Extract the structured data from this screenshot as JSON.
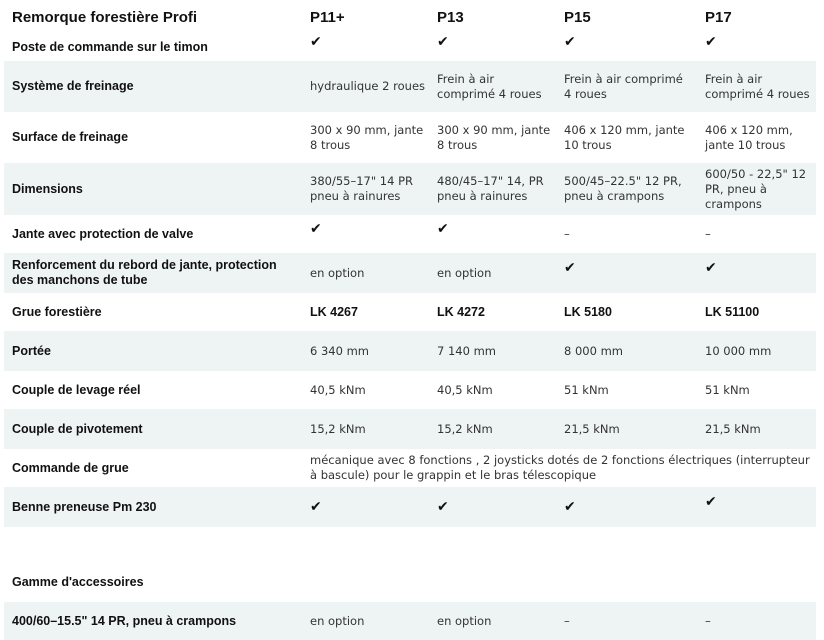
{
  "header": {
    "title": "Remorque forestière Profi",
    "models": [
      "P11+",
      "P13",
      "P15",
      "P17"
    ]
  },
  "rows": [
    {
      "label": "Poste de commande sur le timon",
      "cells": [
        "✔",
        "✔",
        "✔",
        "✔"
      ]
    },
    {
      "label": "Système de freinage",
      "cells": [
        "hydraulique 2 roues",
        "Frein à air comprimé 4 roues",
        "Frein à air comprimé 4 roues",
        "Frein à air comprimé 4 roues"
      ]
    },
    {
      "label": "Surface de freinage",
      "cells": [
        "300 x 90 mm, jante 8 trous",
        "300 x 90 mm, jante 8 trous",
        "406 x 120 mm, jante 10 trous",
        "406 x 120 mm, jante 10 trous"
      ]
    },
    {
      "label": "Dimensions",
      "cells": [
        "380/55–17\" 14 PR pneu à rainures",
        "480/45–17\" 14, PR pneu à rainures",
        "500/45–22.5\" 12 PR, pneu à crampons",
        "600/50 - 22,5\" 12 PR, pneu à crampons"
      ]
    },
    {
      "label": "Jante avec protection de valve",
      "cells": [
        "✔",
        "✔",
        "–",
        "–"
      ]
    },
    {
      "label": "Renforcement du rebord de jante, protection des manchons de tube",
      "cells": [
        "en option",
        "en option",
        "✔",
        "✔"
      ]
    },
    {
      "label": "Grue forestière",
      "cells": [
        "LK 4267",
        "LK 4272",
        "LK 5180",
        "LK 51100"
      ]
    },
    {
      "label": "Portée",
      "cells": [
        "6 340 mm",
        "7 140 mm",
        "8 000 mm",
        "10 000 mm"
      ]
    },
    {
      "label": "Couple de levage réel",
      "cells": [
        "40,5 kNm",
        "40,5 kNm",
        "51 kNm",
        "51 kNm"
      ]
    },
    {
      "label": "Couple de pivotement",
      "cells": [
        "15,2 kNm",
        "15,2 kNm",
        "21,5 kNm",
        "21,5 kNm"
      ]
    },
    {
      "label": "Commande de grue",
      "span_text": "mécanique avec 8 fonctions , 2 joysticks dotés de 2 fonctions électriques (interrupteur à bascule) pour le grappin et le bras télescopique"
    },
    {
      "label": "Benne preneuse Pm 230",
      "cells": [
        "✔",
        "✔",
        "✔",
        "✔"
      ]
    },
    {
      "label": "Gamme d'accessoires",
      "cells": [
        "",
        "",
        "",
        ""
      ]
    },
    {
      "label": "400/60–15.5\" 14 PR, pneu à crampons",
      "cells": [
        "en option",
        "en option",
        "–",
        "–"
      ]
    }
  ]
}
